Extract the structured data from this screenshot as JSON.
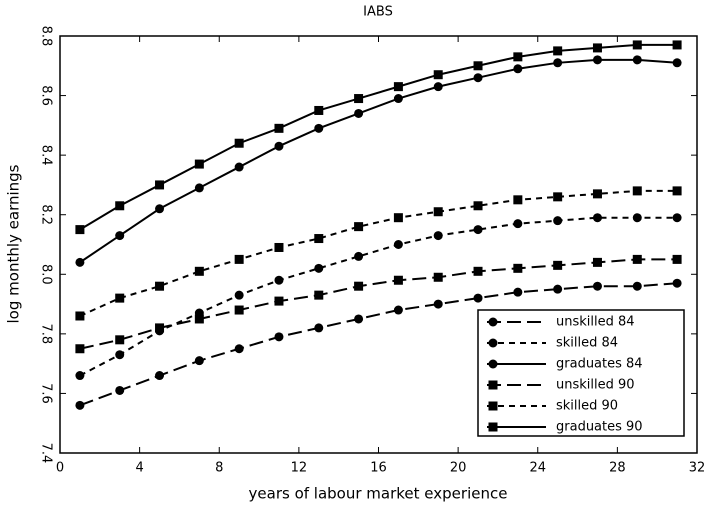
{
  "chart_data": {
    "type": "line",
    "title": "IABS",
    "x_label": "years of labour market experience",
    "y_label": "log monthly earnings",
    "x": [
      1,
      3,
      5,
      7,
      9,
      11,
      13,
      15,
      17,
      19,
      21,
      23,
      25,
      27,
      29,
      31
    ],
    "series": [
      {
        "name": "unskilled 84",
        "color": "#000000",
        "marker": "circle",
        "dash": "long",
        "values": [
          7.56,
          7.61,
          7.66,
          7.71,
          7.75,
          7.79,
          7.82,
          7.85,
          7.88,
          7.9,
          7.92,
          7.94,
          7.95,
          7.96,
          7.96,
          7.97
        ]
      },
      {
        "name": "skilled 84",
        "color": "#000000",
        "marker": "circle",
        "dash": "short",
        "values": [
          7.66,
          7.73,
          7.81,
          7.87,
          7.93,
          7.98,
          8.02,
          8.06,
          8.1,
          8.13,
          8.15,
          8.17,
          8.18,
          8.19,
          8.19,
          8.19
        ]
      },
      {
        "name": "graduates 84",
        "color": "#000000",
        "marker": "circle",
        "dash": "solid",
        "values": [
          8.04,
          8.13,
          8.22,
          8.29,
          8.36,
          8.43,
          8.49,
          8.54,
          8.59,
          8.63,
          8.66,
          8.69,
          8.71,
          8.72,
          8.72,
          8.71
        ]
      },
      {
        "name": "unskilled 90",
        "color": "#000000",
        "marker": "square",
        "dash": "long",
        "values": [
          7.75,
          7.78,
          7.82,
          7.85,
          7.88,
          7.91,
          7.93,
          7.96,
          7.98,
          7.99,
          8.01,
          8.02,
          8.03,
          8.04,
          8.05,
          8.05
        ]
      },
      {
        "name": "skilled 90",
        "color": "#000000",
        "marker": "square",
        "dash": "short",
        "values": [
          7.86,
          7.92,
          7.96,
          8.01,
          8.05,
          8.09,
          8.12,
          8.16,
          8.19,
          8.21,
          8.23,
          8.25,
          8.26,
          8.27,
          8.28,
          8.28
        ]
      },
      {
        "name": "graduates 90",
        "color": "#000000",
        "marker": "square",
        "dash": "solid",
        "values": [
          8.15,
          8.23,
          8.3,
          8.37,
          8.44,
          8.49,
          8.55,
          8.59,
          8.63,
          8.67,
          8.7,
          8.73,
          8.75,
          8.76,
          8.77,
          8.77
        ]
      }
    ],
    "xlim": [
      0,
      32
    ],
    "xticks": [
      0,
      4,
      8,
      12,
      16,
      20,
      24,
      28,
      32
    ],
    "ylim": [
      7.4,
      8.8
    ],
    "yticks": [
      7.4,
      7.6,
      7.8,
      {
        "value": 8,
        "label": "8.0"
      },
      8.2,
      8.4,
      8.6,
      8.8
    ],
    "legend": "lower right",
    "grid": false
  }
}
